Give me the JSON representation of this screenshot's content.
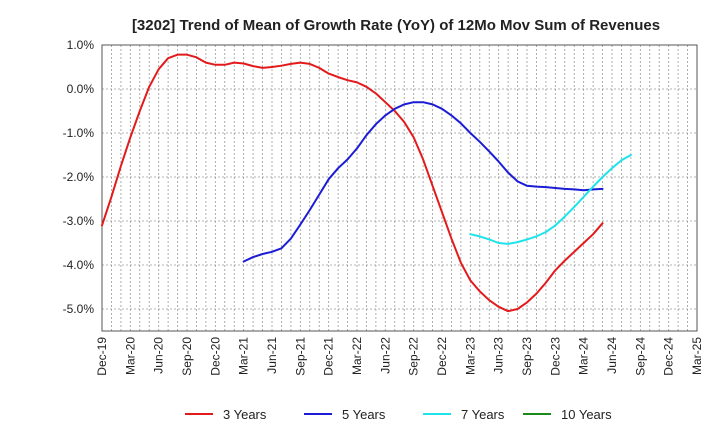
{
  "chart_data": {
    "type": "line",
    "title": "[3202]  Trend of Mean of Growth Rate (YoY) of 12Mo Mov Sum of Revenues",
    "xlabel": "",
    "ylabel": "",
    "ylim": [
      -5.5,
      1.0
    ],
    "y_ticks": [
      1.0,
      0.0,
      -1.0,
      -2.0,
      -3.0,
      -4.0,
      -5.0
    ],
    "y_tick_labels": [
      "1.0%",
      "0.0%",
      "-1.0%",
      "-2.0%",
      "-3.0%",
      "-4.0%",
      "-5.0%"
    ],
    "x_tick_labels": [
      "Dec-19",
      "Mar-20",
      "Jun-20",
      "Sep-20",
      "Dec-20",
      "Mar-21",
      "Jun-21",
      "Sep-21",
      "Dec-21",
      "Mar-22",
      "Jun-22",
      "Sep-22",
      "Dec-22",
      "Mar-23",
      "Jun-23",
      "Sep-23",
      "Dec-23",
      "Mar-24",
      "Jun-24",
      "Sep-24",
      "Dec-24",
      "Mar-25"
    ],
    "grid": true,
    "legend_position": "bottom",
    "series": [
      {
        "name": "3 Years",
        "color": "#e31a1c",
        "start_index": 0,
        "values": [
          -3.1,
          -2.45,
          -1.75,
          -1.1,
          -0.5,
          0.05,
          0.45,
          0.7,
          0.78,
          0.78,
          0.72,
          0.6,
          0.55,
          0.55,
          0.6,
          0.58,
          0.52,
          0.48,
          0.5,
          0.53,
          0.57,
          0.6,
          0.57,
          0.48,
          0.35,
          0.27,
          0.2,
          0.15,
          0.05,
          -0.1,
          -0.3,
          -0.5,
          -0.75,
          -1.1,
          -1.6,
          -2.2,
          -2.8,
          -3.4,
          -3.95,
          -4.35,
          -4.6,
          -4.8,
          -4.95,
          -5.05,
          -5.0,
          -4.85,
          -4.65,
          -4.4,
          -4.12,
          -3.9,
          -3.7,
          -3.5,
          -3.3,
          -3.05
        ]
      },
      {
        "name": "5 Years",
        "color": "#1c1cd6",
        "start_index": 15,
        "values": [
          -3.92,
          -3.82,
          -3.75,
          -3.7,
          -3.62,
          -3.4,
          -3.08,
          -2.75,
          -2.4,
          -2.05,
          -1.8,
          -1.6,
          -1.35,
          -1.05,
          -0.8,
          -0.6,
          -0.45,
          -0.35,
          -0.3,
          -0.3,
          -0.35,
          -0.45,
          -0.6,
          -0.78,
          -1.0,
          -1.2,
          -1.42,
          -1.65,
          -1.9,
          -2.1,
          -2.2,
          -2.22,
          -2.23,
          -2.25,
          -2.27,
          -2.28,
          -2.3,
          -2.28,
          -2.27
        ]
      },
      {
        "name": "7 Years",
        "color": "#1ee3ea",
        "start_index": 39,
        "values": [
          -3.3,
          -3.35,
          -3.42,
          -3.5,
          -3.52,
          -3.48,
          -3.42,
          -3.35,
          -3.25,
          -3.1,
          -2.9,
          -2.68,
          -2.45,
          -2.22,
          -2.0,
          -1.8,
          -1.62,
          -1.5
        ]
      },
      {
        "name": "10 Years",
        "color": "#1a8a1a",
        "start_index": 0,
        "values": []
      }
    ]
  }
}
